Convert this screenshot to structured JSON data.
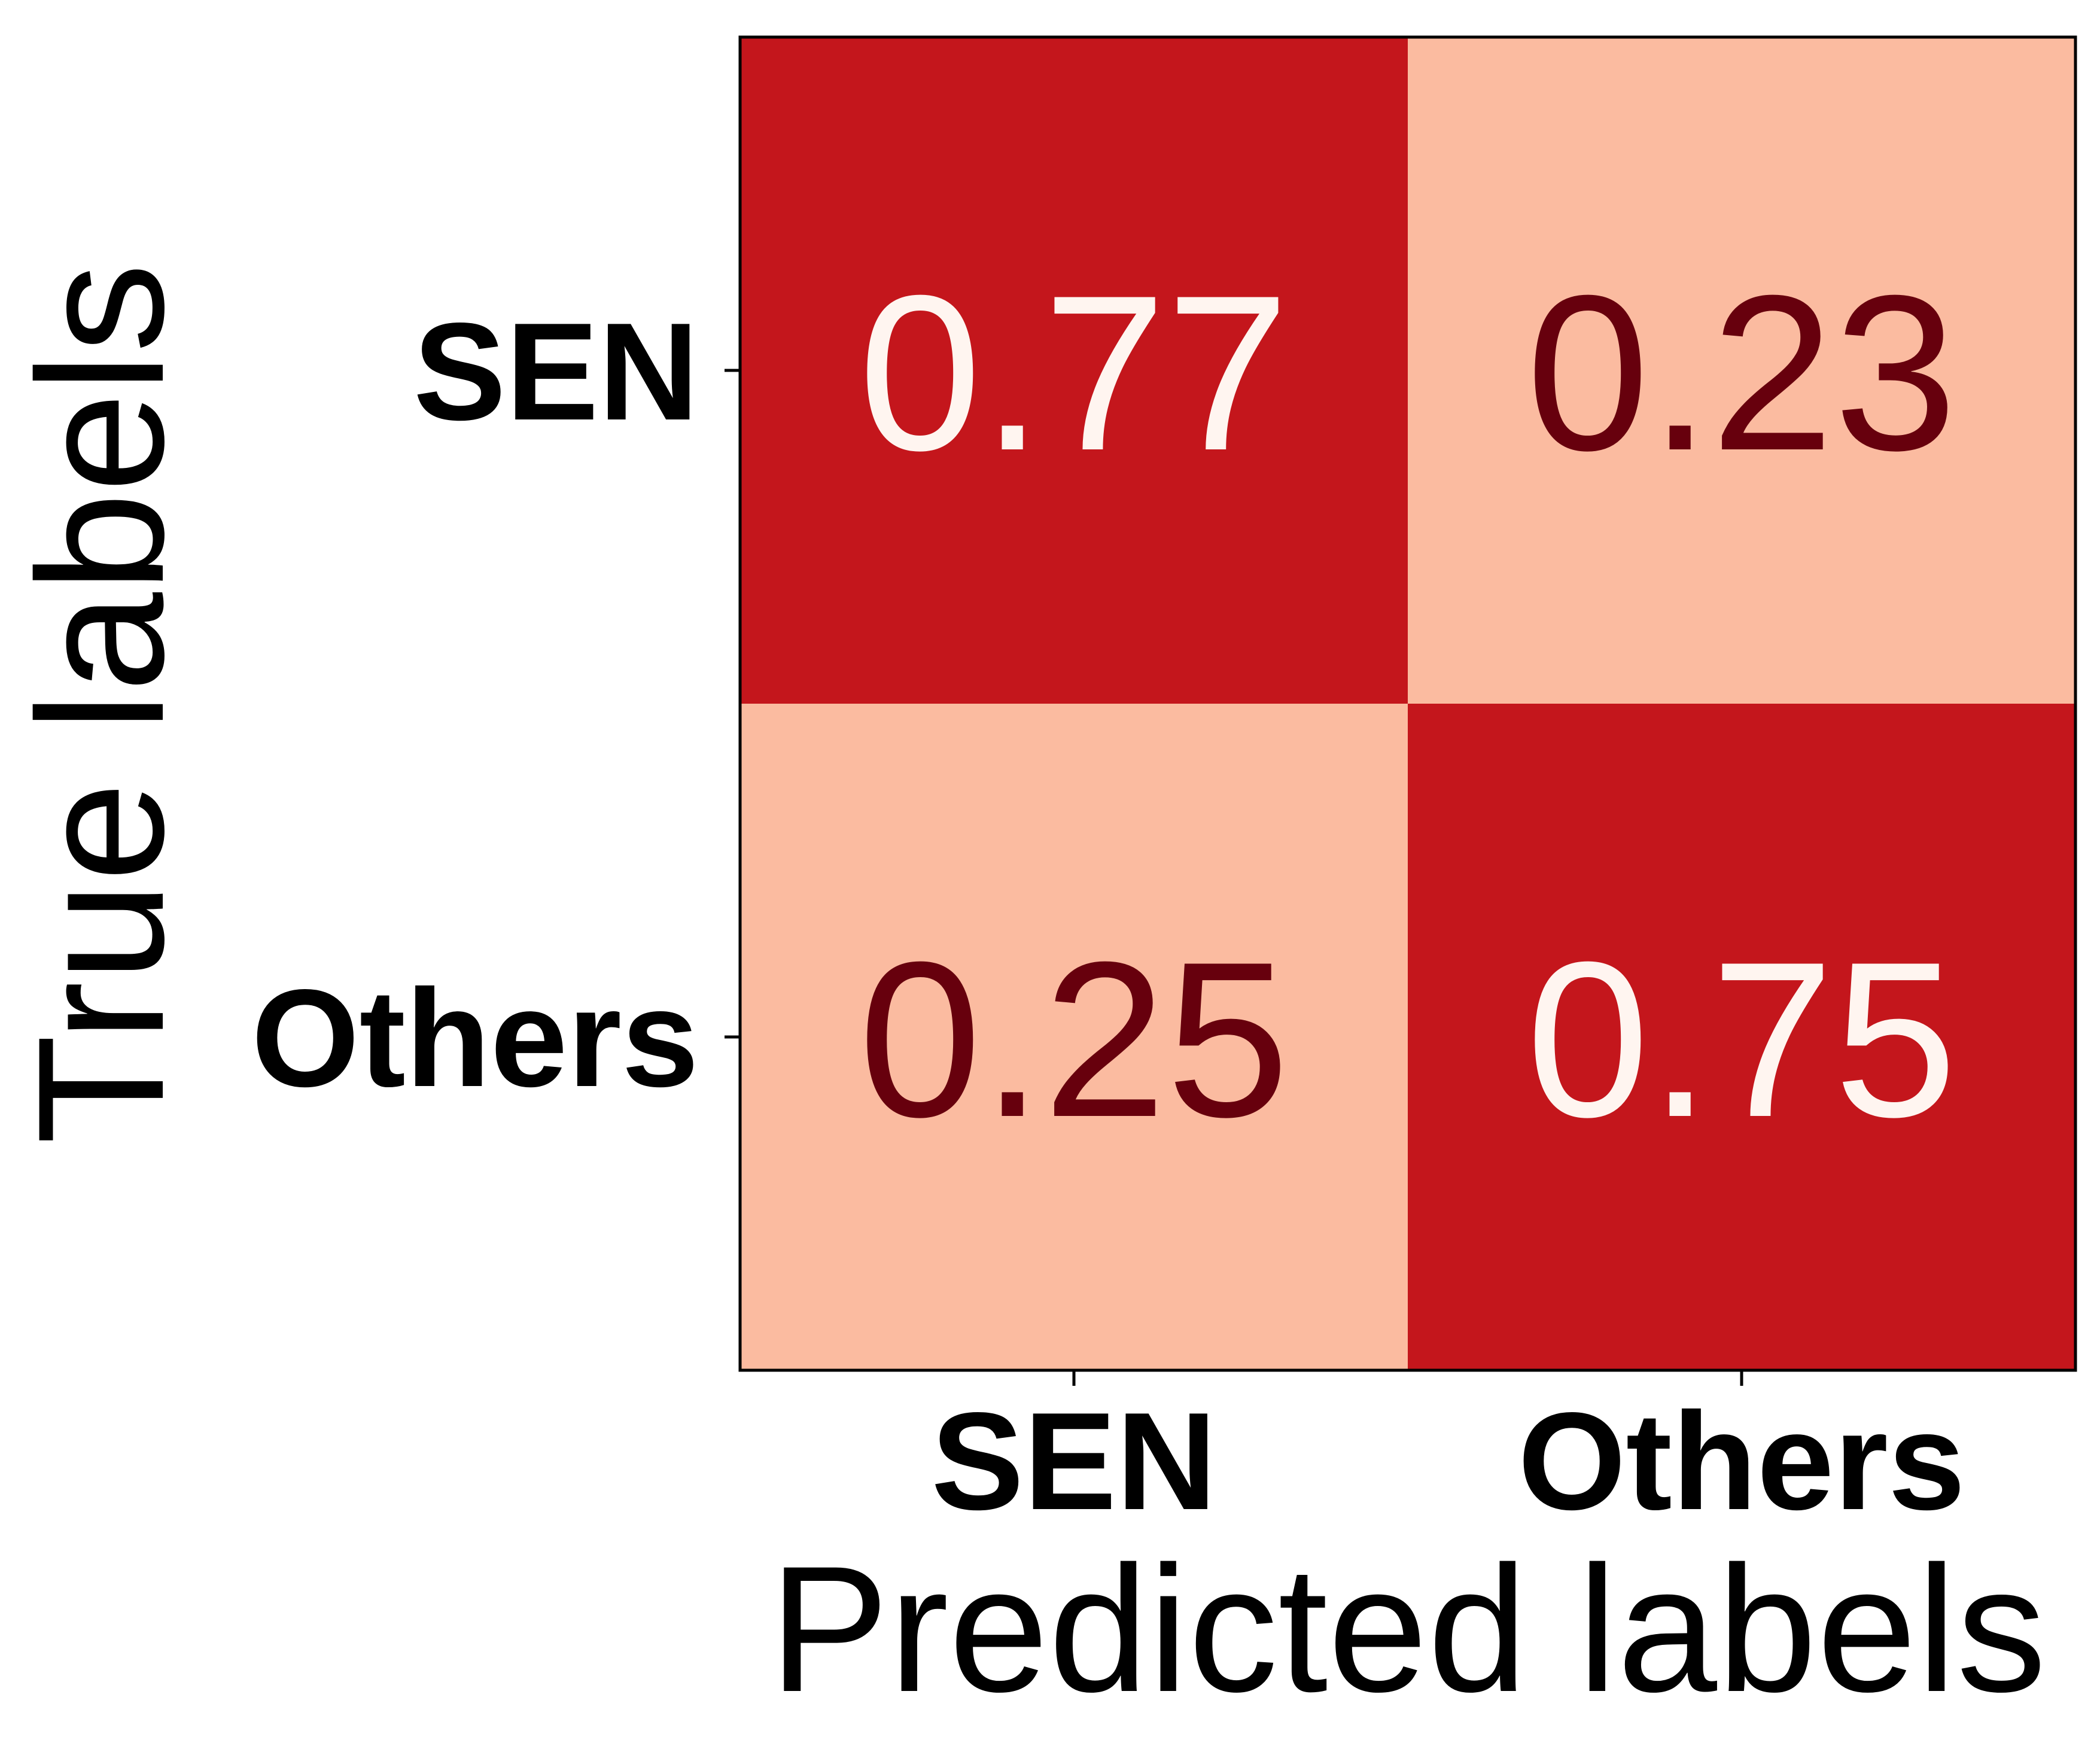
{
  "chart_data": {
    "type": "heatmap",
    "title": "",
    "xlabel": "Predicted labels",
    "ylabel": "True labels",
    "x_categories": [
      "SEN",
      "Others"
    ],
    "y_categories": [
      "SEN",
      "Others"
    ],
    "values": [
      [
        0.77,
        0.23
      ],
      [
        0.25,
        0.75
      ]
    ],
    "value_labels": [
      [
        "0.77",
        "0.23"
      ],
      [
        "0.25",
        "0.75"
      ]
    ],
    "colormap": "Reds",
    "colors": {
      "high": "#c4161c",
      "low": "#fbbba0",
      "text_on_high": "#fff5f0",
      "text_on_low": "#67000d"
    },
    "legend": "none",
    "grid": false
  }
}
